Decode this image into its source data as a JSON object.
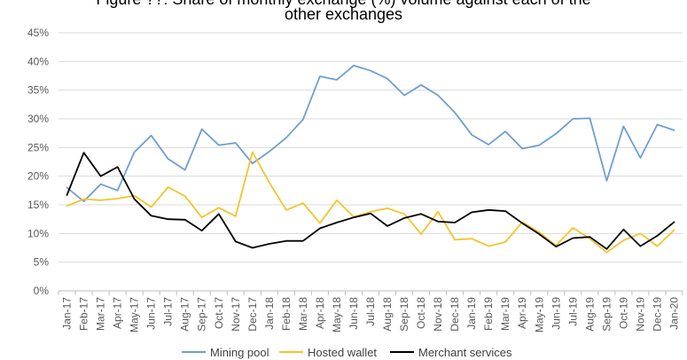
{
  "chart_data": {
    "type": "line",
    "title_line1": "Figure ??: Share of monthly exchange (%) volume against each of the",
    "title_line2": "other exchanges",
    "categories": [
      "Jan-17",
      "Feb-17",
      "Mar-17",
      "Apr-17",
      "May-17",
      "Jun-17",
      "Jul-17",
      "Aug-17",
      "Sep-17",
      "Oct-17",
      "Nov-17",
      "Dec-17",
      "Jan-18",
      "Feb-18",
      "Mar-18",
      "Apr-18",
      "May-18",
      "Jun-18",
      "Jul-18",
      "Aug-18",
      "Sep-18",
      "Oct-18",
      "Nov-18",
      "Dec-18",
      "Jan-19",
      "Feb-19",
      "Mar-19",
      "Apr-19",
      "May-19",
      "Jun-19",
      "Jul-19",
      "Aug-19",
      "Sep-19",
      "Oct-19",
      "Nov-19",
      "Dec-19",
      "Jan-20"
    ],
    "ylim": [
      0,
      45
    ],
    "yticks": [
      "0%",
      "5%",
      "10%",
      "15%",
      "20%",
      "25%",
      "30%",
      "35%",
      "40%",
      "45%"
    ],
    "grid": true,
    "legend_position": "bottom",
    "series": [
      {
        "name": "Mining pool",
        "color": "#6F9ED4",
        "values": [
          18.0,
          15.6,
          18.6,
          17.5,
          24.2,
          27.1,
          23.0,
          21.1,
          28.2,
          25.4,
          25.8,
          22.2,
          24.3,
          26.7,
          29.9,
          37.4,
          36.8,
          39.3,
          38.4,
          37.0,
          34.1,
          35.9,
          34.1,
          31.1,
          27.2,
          25.5,
          27.8,
          24.8,
          25.4,
          27.4,
          30.0,
          30.1,
          19.2,
          28.7,
          23.2,
          29.0,
          28.0
        ]
      },
      {
        "name": "Hosted wallet",
        "color": "#F3C52A",
        "values": [
          14.8,
          16.0,
          15.8,
          16.1,
          16.6,
          14.6,
          18.1,
          16.5,
          12.8,
          14.5,
          13.0,
          24.2,
          18.9,
          14.1,
          15.3,
          11.8,
          15.8,
          12.9,
          13.8,
          14.4,
          13.4,
          9.9,
          13.8,
          8.9,
          9.1,
          7.8,
          8.5,
          12.0,
          10.2,
          7.9,
          11.0,
          9.1,
          6.7,
          8.8,
          10.0,
          7.8,
          10.6
        ]
      },
      {
        "name": "Merchant services",
        "color": "#000000",
        "values": [
          16.7,
          24.1,
          20.0,
          21.6,
          16.0,
          13.1,
          12.5,
          12.4,
          10.5,
          13.4,
          8.6,
          7.5,
          8.2,
          8.7,
          8.7,
          10.9,
          11.9,
          12.8,
          13.5,
          11.3,
          12.7,
          13.4,
          12.1,
          11.9,
          13.7,
          14.1,
          13.9,
          11.8,
          9.9,
          7.7,
          9.2,
          9.4,
          7.3,
          10.7,
          7.8,
          9.6,
          12.0
        ]
      }
    ]
  }
}
